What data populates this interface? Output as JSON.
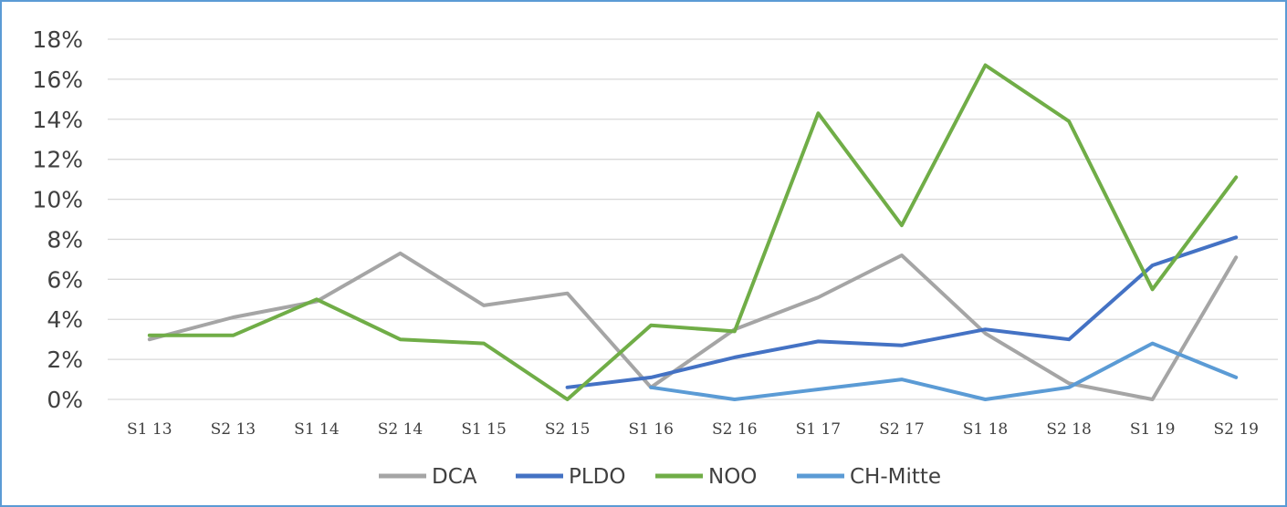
{
  "chart_data": {
    "type": "line",
    "title": "",
    "xlabel": "",
    "ylabel": "",
    "categories": [
      "S1 13",
      "S2 13",
      "S1 14",
      "S2 14",
      "S1 15",
      "S2 15",
      "S1 16",
      "S2 16",
      "S1 17",
      "S2 17",
      "S1 18",
      "S2 18",
      "S1 19",
      "S2 19"
    ],
    "ylim": [
      0,
      18
    ],
    "yticks": [
      0,
      2,
      4,
      6,
      8,
      10,
      12,
      14,
      16,
      18
    ],
    "ytick_labels": [
      "0%",
      "2%",
      "4%",
      "6%",
      "8%",
      "10%",
      "12%",
      "14%",
      "16%",
      "18%"
    ],
    "grid": true,
    "legend_position": "bottom",
    "series": [
      {
        "name": "DCA",
        "color": "#a5a5a5",
        "values": [
          3.0,
          4.1,
          4.9,
          7.3,
          4.7,
          5.3,
          0.6,
          3.5,
          5.1,
          7.2,
          3.3,
          0.8,
          0.0,
          7.1
        ]
      },
      {
        "name": "PLDO",
        "color": "#4472c4",
        "values": [
          null,
          null,
          null,
          null,
          null,
          0.6,
          1.1,
          2.1,
          2.9,
          2.7,
          3.5,
          3.0,
          6.7,
          8.1
        ]
      },
      {
        "name": "NOO",
        "color": "#70ad47",
        "values": [
          3.2,
          3.2,
          5.0,
          3.0,
          2.8,
          0.0,
          3.7,
          3.4,
          14.3,
          8.7,
          16.7,
          13.9,
          5.5,
          11.1
        ]
      },
      {
        "name": "CH-Mitte",
        "color": "#5b9bd5",
        "values": [
          null,
          null,
          null,
          null,
          null,
          null,
          0.6,
          0.0,
          0.5,
          1.0,
          0.0,
          0.6,
          2.8,
          1.1
        ]
      }
    ]
  }
}
